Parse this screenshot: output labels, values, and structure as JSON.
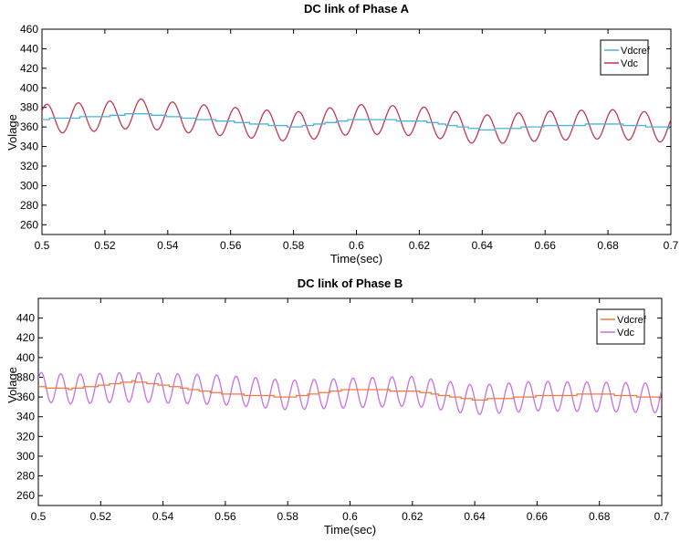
{
  "chart_data": [
    {
      "type": "line",
      "title": "DC link of Phase A",
      "xlabel": "Time(sec)",
      "ylabel": "Volage",
      "xlim": [
        0.5,
        0.7
      ],
      "ylim": [
        250,
        460
      ],
      "xticks": [
        "0.5",
        "0.52",
        "0.54",
        "0.56",
        "0.58",
        "0.6",
        "0.62",
        "0.64",
        "0.66",
        "0.68",
        "0.7"
      ],
      "yticks": [
        "260",
        "280",
        "300",
        "320",
        "340",
        "360",
        "380",
        "400",
        "420",
        "440",
        "460"
      ],
      "legend_position": "top-right",
      "grid": false,
      "series": [
        {
          "name": "Vdcref",
          "color": "#4fb3d9",
          "style": "stepped",
          "x": [
            0.5,
            0.52,
            0.53,
            0.55,
            0.58,
            0.6,
            0.62,
            0.64,
            0.66,
            0.68,
            0.7
          ],
          "values": [
            368,
            371,
            374,
            368,
            360,
            368,
            366,
            357,
            361,
            363,
            359
          ]
        },
        {
          "name": "Vdc",
          "color": "#c0394f",
          "style": "oscillation",
          "period": 0.01,
          "x": [
            0.5,
            0.52,
            0.53,
            0.55,
            0.58,
            0.6,
            0.62,
            0.64,
            0.66,
            0.68,
            0.7
          ],
          "values": [
            368,
            371,
            374,
            368,
            360,
            368,
            366,
            357,
            361,
            363,
            359
          ],
          "amplitude": [
            15,
            15,
            15,
            15,
            15,
            15,
            15,
            15,
            15,
            15,
            15
          ]
        }
      ]
    },
    {
      "type": "line",
      "title": "DC link of Phase B",
      "xlabel": "Time(sec)",
      "ylabel": "Volage",
      "xlim": [
        0.5,
        0.7
      ],
      "ylim": [
        250,
        460
      ],
      "xticks": [
        "0.5",
        "0.52",
        "0.54",
        "0.56",
        "0.58",
        "0.6",
        "0.62",
        "0.64",
        "0.66",
        "0.68",
        "0.7"
      ],
      "yticks": [
        "260",
        "280",
        "300",
        "320",
        "340",
        "360",
        "380",
        "400",
        "420",
        "440"
      ],
      "legend_position": "top-right",
      "grid": false,
      "series": [
        {
          "name": "Vdcref",
          "color": "#f07a3a",
          "style": "stepped",
          "x": [
            0.5,
            0.51,
            0.53,
            0.56,
            0.58,
            0.6,
            0.62,
            0.64,
            0.66,
            0.68,
            0.7
          ],
          "values": [
            370,
            368,
            376,
            363,
            360,
            368,
            366,
            357,
            361,
            363,
            359
          ]
        },
        {
          "name": "Vdc",
          "color": "#c86ee8",
          "style": "oscillation",
          "period": 0.00625,
          "x": [
            0.5,
            0.51,
            0.53,
            0.56,
            0.58,
            0.6,
            0.62,
            0.64,
            0.66,
            0.68,
            0.7
          ],
          "values": [
            370,
            368,
            370,
            367,
            362,
            364,
            366,
            357,
            361,
            360,
            359
          ],
          "amplitude": [
            15,
            15,
            15,
            15,
            15,
            15,
            15,
            15,
            15,
            15,
            15
          ]
        }
      ]
    }
  ]
}
